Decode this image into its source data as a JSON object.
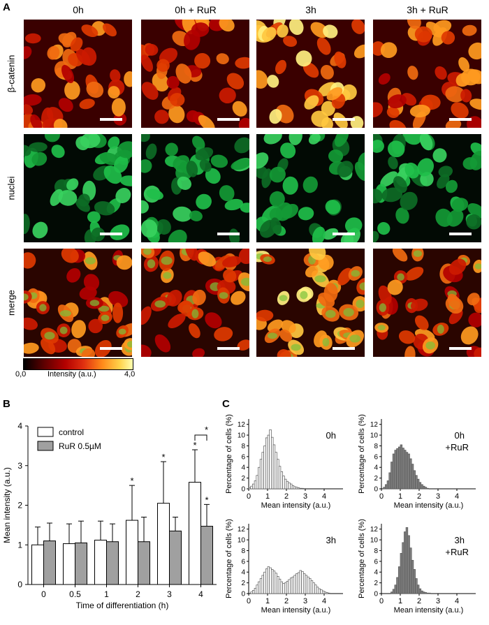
{
  "panels": {
    "a": "A",
    "b": "B",
    "c": "C"
  },
  "micrographs": {
    "columns": [
      "0h",
      "0h + RuR",
      "3h",
      "3h + RuR"
    ],
    "rows": [
      "β-catenin",
      "nuclei",
      "merge"
    ],
    "colorbar": {
      "min": "0,0",
      "max": "4,0",
      "label": "Intensity (a.u.)"
    },
    "colors": {
      "low": "#000000",
      "mid": "#cc0000",
      "high": "#ffff99",
      "nuclei": "#1fbf4a"
    }
  },
  "chart_data": [
    {
      "type": "bar",
      "panel": "B",
      "categories": [
        "0",
        "0.5",
        "1",
        "2",
        "3",
        "4"
      ],
      "xlabel": "Time of differentiation (h)",
      "ylabel": "Mean intensity (a.u.)",
      "ylim": [
        0,
        4
      ],
      "yticks": [
        "0",
        "1",
        "2",
        "3",
        "4"
      ],
      "legend": "top-left",
      "series": [
        {
          "name": "control",
          "color": "#ffffff",
          "values": [
            1.0,
            1.03,
            1.12,
            1.62,
            2.05,
            2.58
          ],
          "error": [
            0.45,
            0.5,
            0.48,
            0.88,
            1.05,
            0.82
          ],
          "sig": [
            "",
            "",
            "",
            "*",
            "*",
            "*"
          ]
        },
        {
          "name": "RuR 0.5µM",
          "color": "#a0a0a0",
          "values": [
            1.1,
            1.05,
            1.08,
            1.08,
            1.35,
            1.47
          ],
          "error": [
            0.45,
            0.55,
            0.45,
            0.62,
            0.35,
            0.55
          ],
          "sig": [
            "",
            "",
            "",
            "",
            "",
            "*"
          ]
        }
      ],
      "bracket_label": "*"
    },
    {
      "type": "bar",
      "panel": "C",
      "label": "0h",
      "xlabel": "Mean intensity (a.u.)",
      "ylabel": "Percentage of cells (%)",
      "xlim": [
        0,
        5
      ],
      "ylim": [
        0,
        13
      ],
      "xticks": [
        "0",
        "1",
        "2",
        "3",
        "4"
      ],
      "yticks": [
        "0",
        "2",
        "4",
        "6",
        "8",
        "10",
        "12"
      ],
      "color": "#ffffff",
      "bins": [
        0.0,
        0.1,
        0.2,
        0.3,
        0.4,
        0.5,
        0.6,
        0.7,
        0.8,
        0.9,
        1.0,
        1.1,
        1.2,
        1.3,
        1.4,
        1.5,
        1.6,
        1.7,
        1.8,
        1.9,
        2.0,
        2.1,
        2.2,
        2.3,
        2.4,
        2.5,
        2.6,
        2.7,
        2.8
      ],
      "values": [
        0.2,
        0.5,
        0.9,
        1.5,
        2.5,
        4,
        5.5,
        6.8,
        8,
        9.5,
        10,
        11,
        9.6,
        8.2,
        6.8,
        5.5,
        4.2,
        3.2,
        2.4,
        1.8,
        1.4,
        1.1,
        0.9,
        0.6,
        0.4,
        0.3,
        0.2,
        0.1,
        0.1
      ]
    },
    {
      "type": "bar",
      "panel": "C",
      "label": "0h\n+RuR",
      "xlabel": "Mean intensity (a.u.)",
      "ylabel": "Percentage of cells (%)",
      "xlim": [
        0,
        5
      ],
      "ylim": [
        0,
        13
      ],
      "xticks": [
        "0",
        "1",
        "2",
        "3",
        "4"
      ],
      "yticks": [
        "0",
        "2",
        "4",
        "6",
        "8",
        "10",
        "12"
      ],
      "color": "#808080",
      "bins": [
        0.1,
        0.2,
        0.3,
        0.4,
        0.5,
        0.6,
        0.7,
        0.8,
        0.9,
        1.0,
        1.1,
        1.2,
        1.3,
        1.4,
        1.5,
        1.6,
        1.7,
        1.8,
        1.9,
        2.0,
        2.1,
        2.2,
        2.3,
        2.4
      ],
      "values": [
        0.3,
        0.8,
        1.5,
        3,
        5,
        6.5,
        7.2,
        7.5,
        7.8,
        8.2,
        7.6,
        7.2,
        6.8,
        6.5,
        5.6,
        4.6,
        3.4,
        2.5,
        1.8,
        1.2,
        0.8,
        0.5,
        0.3,
        0.1
      ]
    },
    {
      "type": "bar",
      "panel": "C",
      "label": "3h",
      "xlabel": "Mean intensity (a.u.)",
      "ylabel": "Percentage of cells (%)",
      "xlim": [
        0,
        5
      ],
      "ylim": [
        0,
        13
      ],
      "xticks": [
        "0",
        "1",
        "2",
        "3",
        "4"
      ],
      "yticks": [
        "0",
        "2",
        "4",
        "6",
        "8",
        "10",
        "12"
      ],
      "color": "#ffffff",
      "bins": [
        0.1,
        0.2,
        0.3,
        0.4,
        0.5,
        0.6,
        0.7,
        0.8,
        0.9,
        1.0,
        1.1,
        1.2,
        1.3,
        1.4,
        1.5,
        1.6,
        1.7,
        1.8,
        1.9,
        2.0,
        2.1,
        2.2,
        2.3,
        2.4,
        2.5,
        2.6,
        2.7,
        2.8,
        2.9,
        3.0,
        3.1,
        3.2,
        3.3,
        3.4,
        3.5,
        3.6,
        3.7,
        3.8,
        3.9,
        4.0,
        4.1,
        4.2
      ],
      "values": [
        0.3,
        0.6,
        1.0,
        1.6,
        2.2,
        2.8,
        3.4,
        4.0,
        4.6,
        5.0,
        4.8,
        4.5,
        4.2,
        3.8,
        3.2,
        2.7,
        2.2,
        1.9,
        2.0,
        2.3,
        2.6,
        2.9,
        3.1,
        3.4,
        3.7,
        3.9,
        4.3,
        4.1,
        3.7,
        3.4,
        3.1,
        2.8,
        2.4,
        2.0,
        1.6,
        1.2,
        0.9,
        0.7,
        0.5,
        0.3,
        0.2,
        0.1
      ]
    },
    {
      "type": "bar",
      "panel": "C",
      "label": "3h\n+RuR",
      "xlabel": "Mean intensity (a.u.)",
      "ylabel": "Percentage of cells (%)",
      "xlim": [
        0,
        5
      ],
      "ylim": [
        0,
        13
      ],
      "xticks": [
        "0",
        "1",
        "2",
        "3",
        "4"
      ],
      "yticks": [
        "0",
        "2",
        "4",
        "6",
        "8",
        "10",
        "12"
      ],
      "color": "#808080",
      "bins": [
        0.5,
        0.6,
        0.7,
        0.8,
        0.9,
        1.0,
        1.1,
        1.2,
        1.3,
        1.4,
        1.5,
        1.6,
        1.7,
        1.8,
        1.9,
        2.0,
        2.1,
        2.2,
        2.3,
        2.4,
        2.5
      ],
      "values": [
        0.3,
        0.8,
        1.6,
        3,
        5,
        7.5,
        9.5,
        11.5,
        12.3,
        10.8,
        8.5,
        6.2,
        4.5,
        2.8,
        1.6,
        0.9,
        0.5,
        0.3,
        0.2,
        0.1,
        0.1
      ]
    }
  ]
}
